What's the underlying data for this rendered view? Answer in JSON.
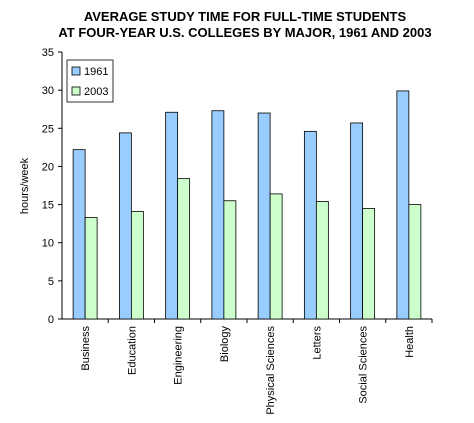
{
  "chart_data": {
    "type": "bar",
    "title": [
      "AVERAGE STUDY TIME FOR FULL-TIME STUDENTS",
      "AT FOUR-YEAR U.S. COLLEGES BY MAJOR, 1961 AND 2003"
    ],
    "ylabel": "hours/week",
    "categories": [
      "Business",
      "Education",
      "Engineering",
      "Biology",
      "Physical Sciences",
      "Letters",
      "Social Sciences",
      "Health"
    ],
    "series": [
      {
        "name": "1961",
        "color": "#99ccff",
        "values": [
          22.2,
          24.4,
          27.1,
          27.3,
          27.0,
          24.6,
          25.7,
          29.9
        ]
      },
      {
        "name": "2003",
        "color": "#ccffcc",
        "values": [
          13.3,
          14.1,
          18.4,
          15.5,
          16.4,
          15.4,
          14.5,
          15.0
        ]
      }
    ],
    "ylim": [
      0,
      35
    ],
    "yticks": [
      0,
      5,
      10,
      15,
      20,
      25,
      30,
      35
    ],
    "grid": false,
    "legend": "top-left"
  }
}
